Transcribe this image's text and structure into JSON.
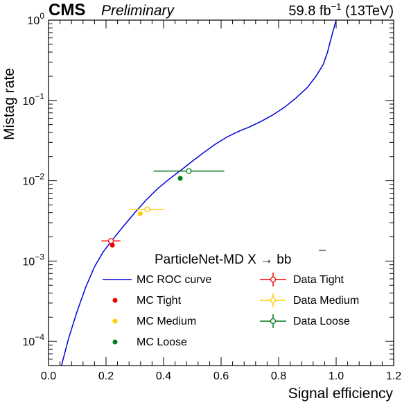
{
  "chart_data": {
    "type": "line",
    "header": {
      "experiment": "CMS",
      "status": "Preliminary",
      "luminosity_value": "59.8 fb",
      "luminosity_exp": "−1",
      "energy": " (13TeV)"
    },
    "xlabel": "Signal efficiency",
    "ylabel": "Mistag rate",
    "xlim": [
      0.0,
      1.2
    ],
    "ylim": [
      5e-05,
      1.0
    ],
    "y_scale": "log",
    "x_ticks": [
      0.0,
      0.2,
      0.4,
      0.6,
      0.8,
      1.0,
      1.2
    ],
    "x_tick_labels": [
      "0.0",
      "0.2",
      "0.4",
      "0.6",
      "0.8",
      "1.0",
      "1.2"
    ],
    "y_ticks": [
      0.0001,
      0.001,
      0.01,
      0.1,
      1.0
    ],
    "y_tick_labels": [
      {
        "base": "10",
        "exp": "−4"
      },
      {
        "base": "10",
        "exp": "−3"
      },
      {
        "base": "10",
        "exp": "−2"
      },
      {
        "base": "10",
        "exp": "−1"
      },
      {
        "base": "10",
        "exp": "0"
      }
    ],
    "legend_title": "ParticleNet-MD X → bb",
    "legend_placement": "bottom-right",
    "grid": false,
    "series": [
      {
        "name": "MC ROC curve",
        "kind": "line",
        "color": "#0000dd",
        "x": [
          0.045,
          0.07,
          0.1,
          0.13,
          0.16,
          0.19,
          0.22,
          0.26,
          0.3,
          0.34,
          0.38,
          0.42,
          0.46,
          0.5,
          0.54,
          0.58,
          0.62,
          0.66,
          0.7,
          0.74,
          0.78,
          0.82,
          0.86,
          0.9,
          0.93,
          0.955,
          0.97,
          0.98,
          0.99,
          1.0
        ],
        "y": [
          5e-05,
          0.00011,
          0.00024,
          0.00048,
          0.00085,
          0.0013,
          0.0018,
          0.0027,
          0.004,
          0.0058,
          0.008,
          0.0105,
          0.0135,
          0.0175,
          0.0225,
          0.0285,
          0.035,
          0.041,
          0.047,
          0.055,
          0.066,
          0.082,
          0.107,
          0.145,
          0.2,
          0.28,
          0.4,
          0.55,
          0.75,
          1.0
        ]
      },
      {
        "name": "MC Tight",
        "kind": "point",
        "color": "#ee0000",
        "x": [
          0.222
        ],
        "y": [
          0.00158
        ]
      },
      {
        "name": "MC Medium",
        "kind": "point",
        "color": "#ffcc00",
        "x": [
          0.319
        ],
        "y": [
          0.0039
        ]
      },
      {
        "name": "MC Loose",
        "kind": "point",
        "color": "#007a1c",
        "x": [
          0.458
        ],
        "y": [
          0.0107
        ]
      },
      {
        "name": "Data Tight",
        "kind": "errorbar",
        "color": "#ee0000",
        "x": [
          0.217
        ],
        "y": [
          0.00178
        ],
        "xerr": [
          0.033
        ],
        "yerr_rel": [
          0.04
        ]
      },
      {
        "name": "Data Medium",
        "kind": "errorbar",
        "color": "#ffcc00",
        "x": [
          0.343
        ],
        "y": [
          0.0044
        ],
        "xerr": [
          0.058
        ],
        "yerr_rel": [
          0.04
        ]
      },
      {
        "name": "Data Loose",
        "kind": "errorbar",
        "color": "#007a1c",
        "x": [
          0.488
        ],
        "y": [
          0.0132
        ],
        "xerr": [
          0.123
        ],
        "yerr_rel": [
          0.04
        ]
      }
    ]
  }
}
